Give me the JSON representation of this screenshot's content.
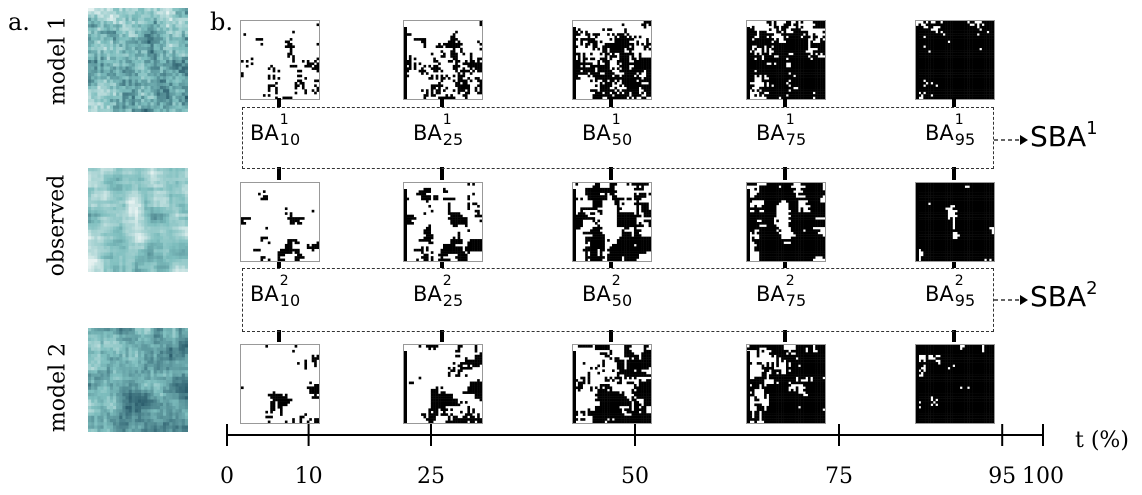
{
  "panels": {
    "a_label": "a.",
    "b_label": "b."
  },
  "rows": [
    {
      "label": "model 1",
      "mask_bind": "m1",
      "field_style": "model1"
    },
    {
      "label": "observed",
      "mask_bind": "obs",
      "field_style": "observed"
    },
    {
      "label": "model 2",
      "mask_bind": "m2",
      "field_style": "model2"
    }
  ],
  "thresholds": [
    "10",
    "25",
    "50",
    "75",
    "95"
  ],
  "ba_rows": [
    {
      "base": "BA",
      "sup": "1",
      "subs": [
        "10",
        "25",
        "50",
        "75",
        "95"
      ],
      "sba": "SBA",
      "sba_sup": "1"
    },
    {
      "base": "BA",
      "sup": "2",
      "subs": [
        "10",
        "25",
        "50",
        "75",
        "95"
      ],
      "sba": "SBA",
      "sba_sup": "2"
    }
  ],
  "axis": {
    "title": "t (%)",
    "ticks": [
      "0",
      "10",
      "25",
      "50",
      "75",
      "95",
      "100"
    ],
    "min": 0,
    "max": 100
  },
  "colors": {
    "field_light": "#e6f2f1",
    "field_mid": "#7fbfbf",
    "field_dark": "#2d5f6e",
    "mask_black": "#000000",
    "dash": "#333333"
  }
}
